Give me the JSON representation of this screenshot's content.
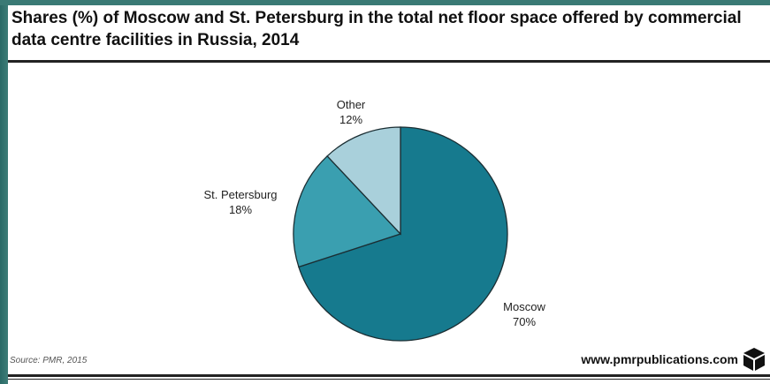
{
  "chart_data": {
    "type": "pie",
    "title": "Shares (%) of Moscow and St. Petersburg in the total net floor space offered by commercial data centre facilities in Russia, 2014",
    "slices": [
      {
        "label": "Moscow",
        "value": 70,
        "value_label": "70%",
        "color": "#167a8e"
      },
      {
        "label": "St. Petersburg",
        "value": 18,
        "value_label": "18%",
        "color": "#3a9fb0"
      },
      {
        "label": "Other",
        "value": 12,
        "value_label": "12%",
        "color": "#a9d0db"
      }
    ],
    "start_angle_deg": 0,
    "direction": "clockwise",
    "stroke_color": "#1b2e33"
  },
  "footer": {
    "source": "Source: PMR, 2015",
    "website": "www.pmrpublications.com",
    "logo_icon": "cube-logo-icon"
  },
  "colors": {
    "frame": "#2f5f5d",
    "background": "#ffffff",
    "text": "#111111"
  }
}
